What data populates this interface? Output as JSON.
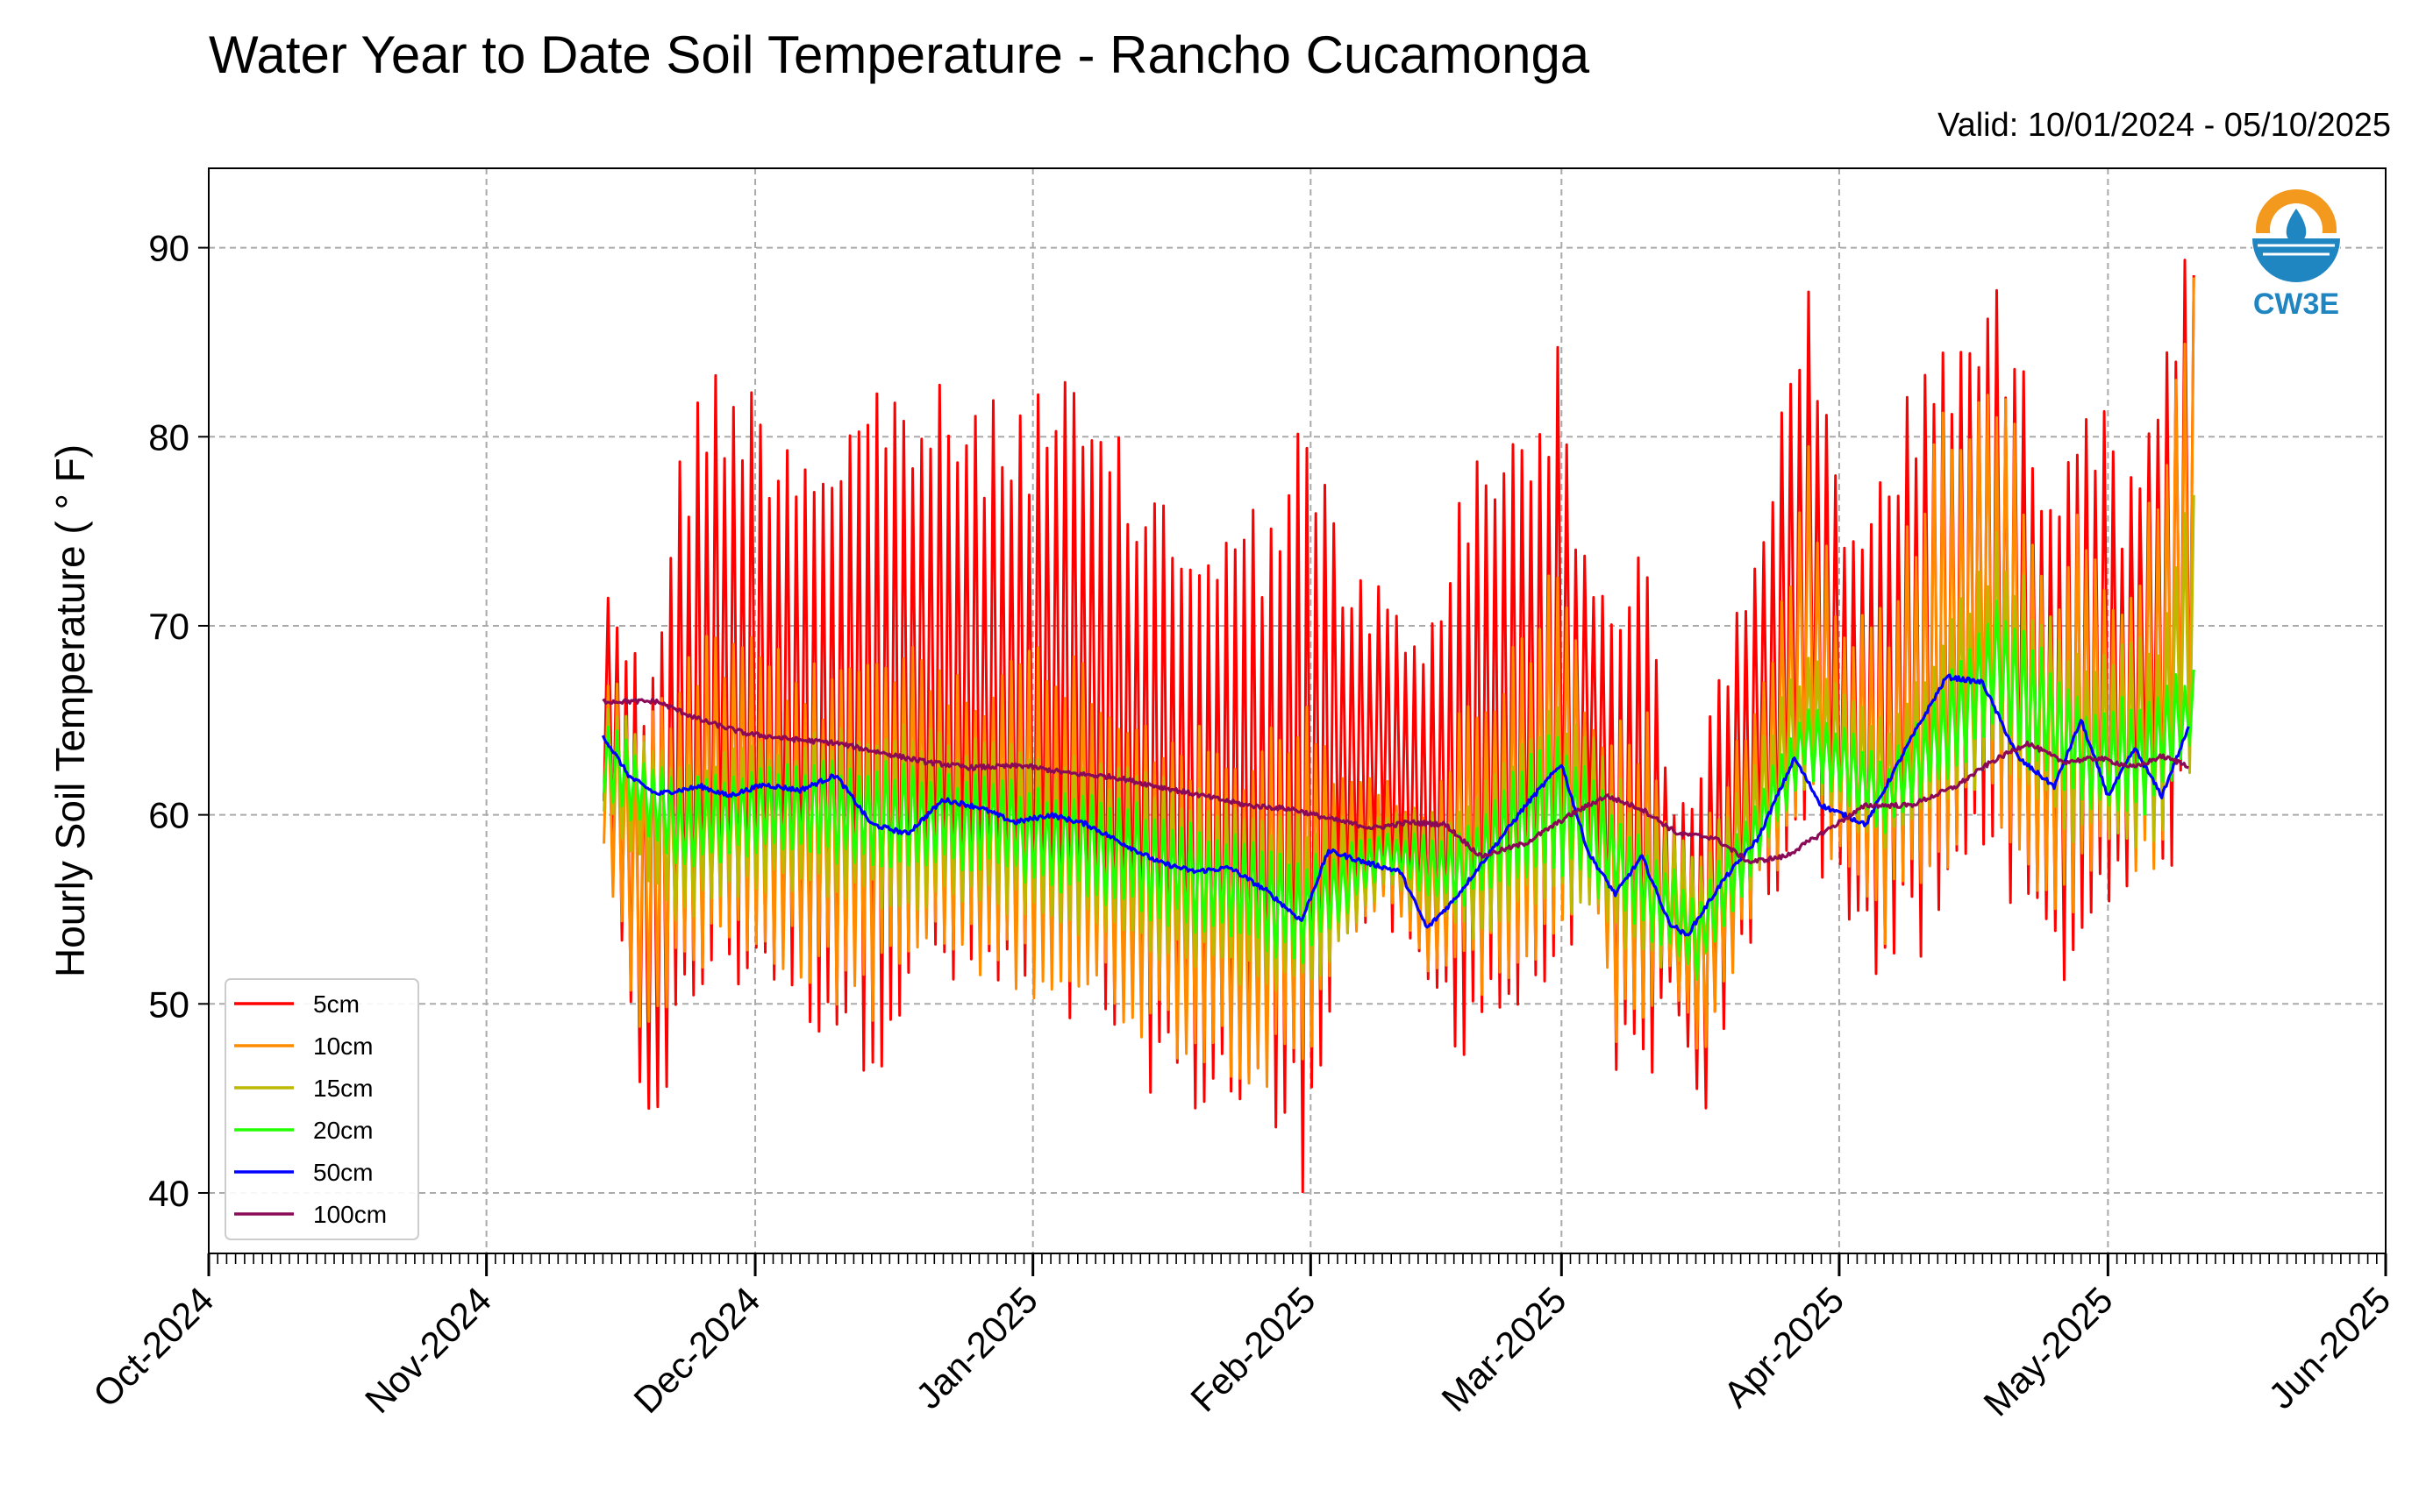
{
  "header": {
    "title": "Water Year to Date Soil Temperature - Rancho Cucamonga",
    "valid": "Valid: 10/01/2024 - 05/10/2025"
  },
  "logo": {
    "text": "CW3E",
    "icon": "cw3e-water-drop-logo",
    "color_orange": "#f39a1e",
    "color_blue": "#1f86c1"
  },
  "chart_data": {
    "type": "line",
    "title": "Water Year to Date Soil Temperature - Rancho Cucamonga",
    "subtitle": "Valid: 10/01/2024 - 05/10/2025",
    "ylabel": "Hourly Soil Temperature ( ° F)",
    "xlabel": "",
    "x_range": [
      "2024-10-01",
      "2025-06-01"
    ],
    "ylim": [
      36.8,
      94.2
    ],
    "yticks": [
      40,
      50,
      60,
      70,
      80,
      90
    ],
    "xticks": [
      {
        "date": "2024-10-01",
        "label": "Oct-2024"
      },
      {
        "date": "2024-11-01",
        "label": "Nov-2024"
      },
      {
        "date": "2024-12-01",
        "label": "Dec-2024"
      },
      {
        "date": "2025-01-01",
        "label": "Jan-2025"
      },
      {
        "date": "2025-02-01",
        "label": "Feb-2025"
      },
      {
        "date": "2025-03-01",
        "label": "Mar-2025"
      },
      {
        "date": "2025-04-01",
        "label": "Apr-2025"
      },
      {
        "date": "2025-05-01",
        "label": "May-2025"
      },
      {
        "date": "2025-06-01",
        "label": "Jun-2025"
      }
    ],
    "grid": true,
    "legend_position": "lower-left",
    "data_start": "2024-11-14",
    "data_end": "2025-05-10",
    "series": [
      {
        "name": "5cm",
        "color": "#ff0000",
        "style": "diurnal",
        "envelope": {
          "dates": [
            "2024-11-14",
            "2024-11-18",
            "2024-11-22",
            "2024-11-26",
            "2024-12-03",
            "2024-12-08",
            "2024-12-14",
            "2024-12-20",
            "2024-12-27",
            "2025-01-03",
            "2025-01-10",
            "2025-01-17",
            "2025-01-24",
            "2025-01-31",
            "2025-02-04",
            "2025-02-09",
            "2025-02-13",
            "2025-02-17",
            "2025-02-24",
            "2025-02-28",
            "2025-03-04",
            "2025-03-07",
            "2025-03-10",
            "2025-03-13",
            "2025-03-16",
            "2025-03-18",
            "2025-03-23",
            "2025-03-28",
            "2025-04-01",
            "2025-04-06",
            "2025-04-12",
            "2025-04-18",
            "2025-04-24",
            "2025-04-28",
            "2025-05-02",
            "2025-05-06",
            "2025-05-10"
          ],
          "max": [
            73,
            68,
            80,
            85,
            82,
            81,
            84,
            83,
            82,
            84,
            80,
            77,
            76,
            82,
            74,
            72,
            69,
            78,
            83,
            85,
            72,
            74,
            76,
            60,
            64,
            68,
            78,
            88,
            76,
            80,
            87,
            88,
            80,
            85,
            78,
            85,
            91
          ],
          "min": [
            60,
            42,
            45,
            50,
            50,
            48,
            46,
            50,
            49,
            48,
            47,
            44,
            43,
            40,
            52,
            54,
            50,
            47,
            48,
            50,
            56,
            44,
            44,
            50,
            42,
            46,
            54,
            58,
            55,
            50,
            52,
            58,
            50,
            51,
            56,
            56,
            58
          ]
        }
      },
      {
        "name": "10cm",
        "color": "#ff8c00",
        "style": "diurnal",
        "envelope": {
          "dates": [
            "2024-11-14",
            "2024-11-18",
            "2024-11-22",
            "2024-11-26",
            "2024-12-03",
            "2024-12-08",
            "2024-12-14",
            "2024-12-20",
            "2024-12-27",
            "2025-01-03",
            "2025-01-10",
            "2025-01-17",
            "2025-01-24",
            "2025-01-31",
            "2025-02-04",
            "2025-02-09",
            "2025-02-13",
            "2025-02-17",
            "2025-02-24",
            "2025-02-28",
            "2025-03-04",
            "2025-03-07",
            "2025-03-10",
            "2025-03-13",
            "2025-03-16",
            "2025-03-18",
            "2025-03-23",
            "2025-03-28",
            "2025-04-01",
            "2025-04-06",
            "2025-04-12",
            "2025-04-18",
            "2025-04-24",
            "2025-04-28",
            "2025-05-02",
            "2025-05-06",
            "2025-05-10"
          ],
          "max": [
            68,
            65,
            68,
            70,
            69,
            68,
            70,
            69,
            68,
            70,
            67,
            65,
            64,
            66,
            63,
            62,
            60,
            66,
            70,
            75,
            65,
            65,
            66,
            57,
            60,
            62,
            68,
            80,
            70,
            72,
            83,
            85,
            73,
            78,
            72,
            78,
            89
          ],
          "min": [
            58,
            48,
            50,
            52,
            52,
            50,
            49,
            52,
            51,
            50,
            49,
            47,
            46,
            44,
            53,
            55,
            52,
            50,
            51,
            52,
            56,
            47,
            47,
            52,
            46,
            48,
            55,
            59,
            57,
            53,
            56,
            60,
            54,
            55,
            57,
            57,
            60
          ]
        }
      },
      {
        "name": "15cm",
        "color": "#bdb800",
        "style": "diurnal",
        "envelope": {
          "dates": [
            "2024-11-14",
            "2024-11-22",
            "2024-12-03",
            "2024-12-14",
            "2024-12-27",
            "2025-01-10",
            "2025-01-24",
            "2025-01-31",
            "2025-02-09",
            "2025-02-17",
            "2025-02-28",
            "2025-03-07",
            "2025-03-16",
            "2025-03-28",
            "2025-04-06",
            "2025-04-18",
            "2025-04-28",
            "2025-05-06",
            "2025-05-10"
          ],
          "max": [
            66,
            63,
            64,
            65,
            64,
            63,
            61,
            60,
            60,
            61,
            67,
            62,
            58,
            69,
            65,
            75,
            68,
            70,
            79
          ],
          "min": [
            60,
            54,
            56,
            55,
            55,
            53,
            51,
            50,
            56,
            53,
            55,
            53,
            51,
            61,
            58,
            62,
            58,
            58,
            62
          ]
        }
      },
      {
        "name": "20cm",
        "color": "#22ff00",
        "style": "diurnal",
        "envelope": {
          "dates": [
            "2024-11-14",
            "2024-11-22",
            "2024-12-03",
            "2024-12-14",
            "2024-12-27",
            "2025-01-10",
            "2025-01-24",
            "2025-01-31",
            "2025-02-09",
            "2025-02-17",
            "2025-02-28",
            "2025-03-07",
            "2025-03-16",
            "2025-03-28",
            "2025-04-06",
            "2025-04-18",
            "2025-04-28",
            "2025-05-06",
            "2025-05-10"
          ],
          "max": [
            65,
            62,
            63,
            63,
            62,
            61,
            59,
            58,
            59,
            59,
            65,
            60,
            56,
            66,
            63,
            72,
            66,
            67,
            68
          ],
          "min": [
            61,
            57,
            58,
            57,
            57,
            55,
            53,
            52,
            57,
            55,
            57,
            55,
            51,
            62,
            59,
            64,
            60,
            60,
            63
          ]
        }
      },
      {
        "name": "50cm",
        "color": "#0000ff",
        "style": "smooth",
        "dates": [
          "2024-11-14",
          "2024-11-17",
          "2024-11-20",
          "2024-11-25",
          "2024-11-28",
          "2024-12-02",
          "2024-12-06",
          "2024-12-10",
          "2024-12-14",
          "2024-12-18",
          "2024-12-22",
          "2024-12-26",
          "2024-12-30",
          "2025-01-03",
          "2025-01-07",
          "2025-01-11",
          "2025-01-15",
          "2025-01-19",
          "2025-01-23",
          "2025-01-27",
          "2025-01-31",
          "2025-02-03",
          "2025-02-07",
          "2025-02-11",
          "2025-02-14",
          "2025-02-17",
          "2025-02-21",
          "2025-02-25",
          "2025-03-01",
          "2025-03-04",
          "2025-03-07",
          "2025-03-10",
          "2025-03-13",
          "2025-03-15",
          "2025-03-19",
          "2025-03-23",
          "2025-03-27",
          "2025-03-30",
          "2025-04-04",
          "2025-04-09",
          "2025-04-13",
          "2025-04-17",
          "2025-04-21",
          "2025-04-25",
          "2025-04-28",
          "2025-05-01",
          "2025-05-04",
          "2025-05-07",
          "2025-05-10"
        ],
        "values": [
          64.2,
          62.0,
          61.1,
          61.5,
          61.0,
          61.6,
          61.3,
          62.1,
          59.5,
          59.0,
          60.8,
          60.4,
          59.6,
          60.0,
          59.5,
          58.5,
          57.5,
          57.0,
          57.2,
          56.0,
          54.4,
          58.1,
          57.5,
          57.0,
          54.0,
          55.5,
          58.0,
          60.5,
          62.7,
          58.0,
          55.8,
          57.8,
          54.3,
          53.6,
          56.5,
          58.8,
          63.0,
          60.5,
          59.5,
          64.0,
          67.3,
          67.0,
          63.0,
          61.5,
          65.0,
          61.0,
          63.5,
          61.0,
          64.6
        ]
      },
      {
        "name": "100cm",
        "color": "#8b0a57",
        "style": "smooth",
        "dates": [
          "2024-11-14",
          "2024-11-20",
          "2024-11-25",
          "2024-11-30",
          "2024-12-05",
          "2024-12-10",
          "2024-12-15",
          "2024-12-20",
          "2024-12-25",
          "2024-12-31",
          "2025-01-05",
          "2025-01-10",
          "2025-01-15",
          "2025-01-20",
          "2025-01-25",
          "2025-01-30",
          "2025-02-03",
          "2025-02-08",
          "2025-02-12",
          "2025-02-16",
          "2025-02-20",
          "2025-02-25",
          "2025-03-02",
          "2025-03-06",
          "2025-03-10",
          "2025-03-14",
          "2025-03-18",
          "2025-03-22",
          "2025-03-26",
          "2025-03-30",
          "2025-04-04",
          "2025-04-09",
          "2025-04-14",
          "2025-04-18",
          "2025-04-22",
          "2025-04-26",
          "2025-04-30",
          "2025-05-04",
          "2025-05-07",
          "2025-05-10"
        ],
        "values": [
          66.0,
          66.0,
          65.0,
          64.3,
          64.0,
          63.8,
          63.3,
          62.8,
          62.5,
          62.6,
          62.2,
          62.0,
          61.5,
          61.0,
          60.5,
          60.3,
          59.8,
          59.3,
          59.6,
          59.5,
          57.8,
          58.5,
          60.0,
          61.0,
          60.3,
          59.0,
          58.8,
          57.5,
          57.8,
          59.0,
          60.5,
          60.5,
          61.5,
          62.8,
          63.8,
          62.8,
          63.0,
          62.5,
          63.1,
          62.6
        ]
      }
    ]
  }
}
